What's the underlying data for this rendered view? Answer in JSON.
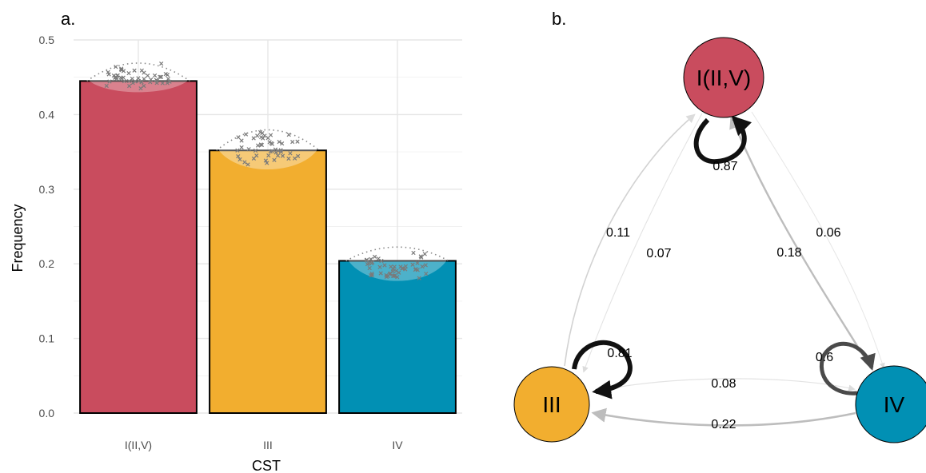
{
  "panels": {
    "a": "a.",
    "b": "b."
  },
  "chart_data": [
    {
      "type": "bar",
      "categories": [
        "I(II,V)",
        "III",
        "IV"
      ],
      "values": [
        0.445,
        0.352,
        0.204
      ],
      "colors": [
        "#C94C5E",
        "#F2AE2F",
        "#0190B4"
      ],
      "xlabel": "CST",
      "ylabel": "Frequency",
      "ylim": [
        0,
        0.5
      ],
      "yticks": [
        "0.0",
        "0.1",
        "0.2",
        "0.3",
        "0.4",
        "0.5"
      ],
      "grid": true,
      "overlay": "jittered sample points with violin density (gray crosses)"
    },
    {
      "type": "network",
      "nodes": [
        {
          "id": "I(II,V)",
          "label": "I(II,V)",
          "color": "#C94C5E"
        },
        {
          "id": "III",
          "label": "III",
          "color": "#F2AE2F"
        },
        {
          "id": "IV",
          "label": "IV",
          "color": "#0190B4"
        }
      ],
      "edges": [
        {
          "from": "I(II,V)",
          "to": "I(II,V)",
          "weight": 0.87,
          "label": "0.87"
        },
        {
          "from": "III",
          "to": "III",
          "weight": 0.81,
          "label": "0.81"
        },
        {
          "from": "IV",
          "to": "IV",
          "weight": 0.6,
          "label": "0.6"
        },
        {
          "from": "III",
          "to": "I(II,V)",
          "weight": 0.11,
          "label": "0.11"
        },
        {
          "from": "I(II,V)",
          "to": "III",
          "weight": 0.07,
          "label": "0.07"
        },
        {
          "from": "IV",
          "to": "I(II,V)",
          "weight": 0.18,
          "label": "0.18"
        },
        {
          "from": "I(II,V)",
          "to": "IV",
          "weight": 0.06,
          "label": "0.06"
        },
        {
          "from": "III",
          "to": "IV",
          "weight": 0.08,
          "label": "0.08"
        },
        {
          "from": "IV",
          "to": "III",
          "weight": 0.22,
          "label": "0.22"
        }
      ]
    }
  ]
}
